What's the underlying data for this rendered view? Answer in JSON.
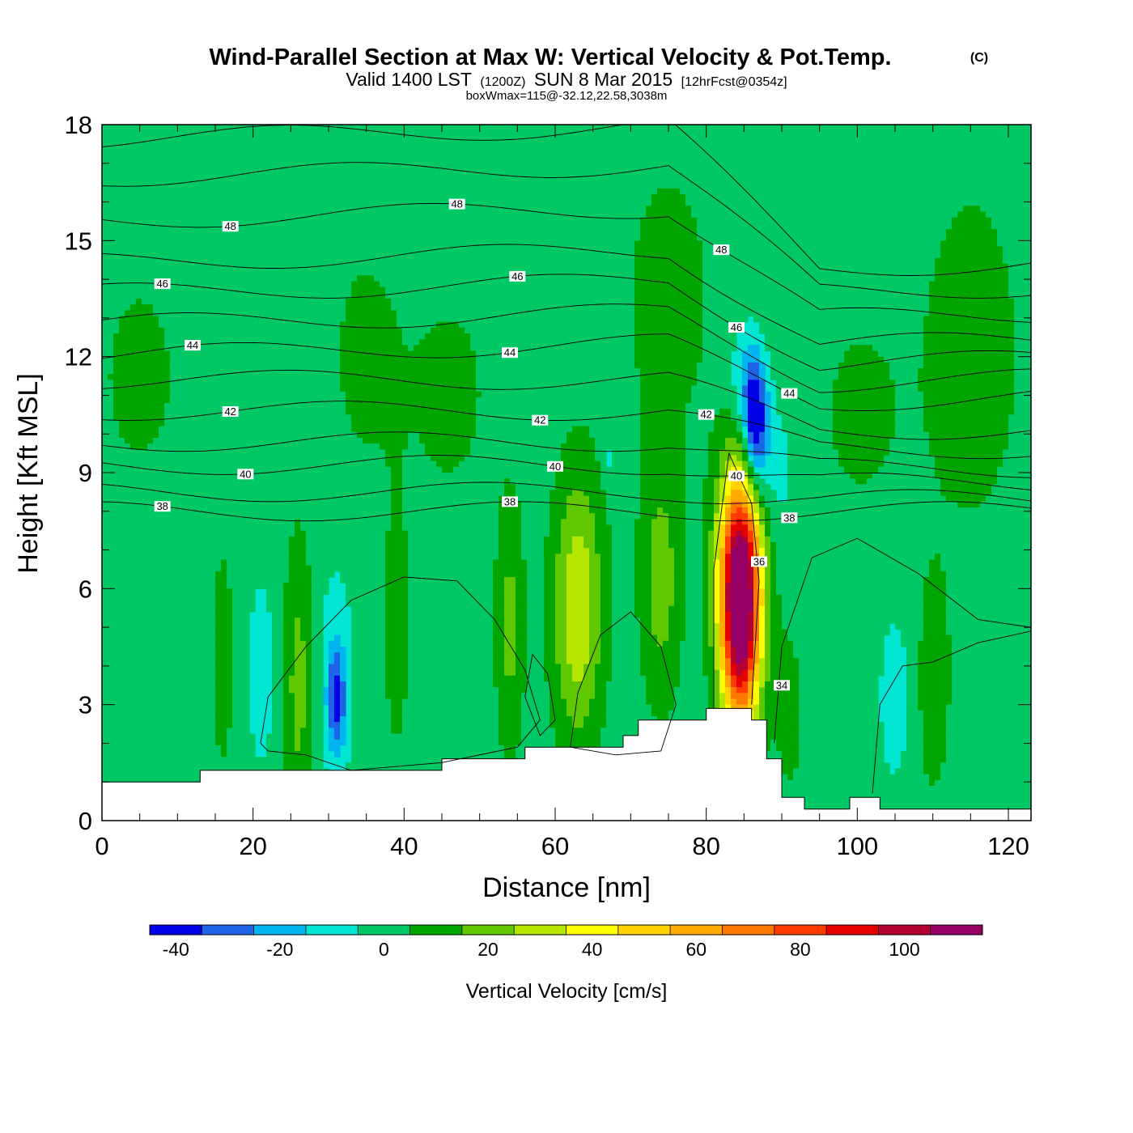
{
  "chart_data": {
    "type": "heatmap",
    "title": "Wind-Parallel Section at Max W: Vertical Velocity & Pot.Temp.",
    "title_suffix": "(C)",
    "subtitle": {
      "prefix": "Valid 1400 LST",
      "utc": "(1200Z)",
      "date": "SUN 8 Mar 2015",
      "forecast": "[12hrFcst@0354z]"
    },
    "subtitle2": "boxWmax=115@-32.12,22.58,3038m",
    "xlabel": "Distance [nm]",
    "ylabel": "Height [Kft MSL]",
    "xlim": [
      0,
      123
    ],
    "ylim": [
      0,
      18
    ],
    "x_ticks": [
      0,
      20,
      40,
      60,
      80,
      100,
      120
    ],
    "y_ticks": [
      0,
      3,
      6,
      9,
      12,
      15,
      18
    ],
    "colorbar": {
      "title": "Vertical Velocity [cm/s]",
      "bounds": [
        -45,
        -35,
        -25,
        -15,
        -5,
        5,
        15,
        25,
        35,
        45,
        55,
        65,
        75,
        85,
        95,
        105,
        115
      ],
      "colors": [
        "#0000e6",
        "#1e64e6",
        "#00b4f0",
        "#00e6d2",
        "#00c864",
        "#00a500",
        "#60c800",
        "#b4e600",
        "#ffff00",
        "#ffd200",
        "#ffaa00",
        "#ff7800",
        "#ff3c00",
        "#e60000",
        "#b40032",
        "#960064"
      ],
      "labels": [
        "-40",
        "-20",
        "0",
        "20",
        "40",
        "60",
        "80",
        "100"
      ],
      "label_values": [
        -40,
        -20,
        0,
        20,
        40,
        60,
        80,
        100
      ]
    },
    "features": [
      {
        "name": "strong-updraft",
        "x": 84.5,
        "y": 6.2,
        "sx": 2.0,
        "sy": 2.0,
        "w": 115
      },
      {
        "name": "updraft-lower",
        "x": 84.5,
        "y": 4.0,
        "sx": 1.7,
        "sy": 1.8,
        "w": 40
      },
      {
        "name": "updraft-63nm",
        "x": 63,
        "y": 5.5,
        "sx": 2.3,
        "sy": 2.4,
        "w": 34
      },
      {
        "name": "updraft-74nm",
        "x": 74,
        "y": 6.2,
        "sx": 1.9,
        "sy": 2.2,
        "w": 20
      },
      {
        "name": "updraft-54nm",
        "x": 54,
        "y": 5.0,
        "sx": 1.3,
        "sy": 2.3,
        "w": 18
      },
      {
        "name": "updraft-26nm",
        "x": 26,
        "y": 3.5,
        "sx": 1.3,
        "sy": 2.6,
        "w": 19
      },
      {
        "name": "updraft-39nm",
        "x": 39,
        "y": 5.0,
        "sx": 1.4,
        "sy": 2.6,
        "w": 9
      },
      {
        "name": "updraft-16nm",
        "x": 16,
        "y": 4.2,
        "sx": 1.3,
        "sy": 2.6,
        "w": 8
      },
      {
        "name": "updraft-110nm",
        "x": 110,
        "y": 3.3,
        "sx": 1.8,
        "sy": 2.2,
        "w": 9
      },
      {
        "name": "updraft-91nm",
        "x": 91,
        "y": 2.8,
        "sx": 1.5,
        "sy": 1.8,
        "w": 8
      },
      {
        "name": "downdraft-87nm",
        "x": 86.5,
        "y": 10.3,
        "sx": 1.1,
        "sy": 1.1,
        "w": -48
      },
      {
        "name": "downdraft-ridge",
        "x": 88.5,
        "y": 9.0,
        "sx": 2.3,
        "sy": 1.4,
        "w": -10
      },
      {
        "name": "downdraft-85nm-upper",
        "x": 85,
        "y": 11.5,
        "sx": 1.4,
        "sy": 1.0,
        "w": -15
      },
      {
        "name": "downdraft-31nm",
        "x": 31,
        "y": 3.1,
        "sx": 0.8,
        "sy": 0.9,
        "w": -32
      },
      {
        "name": "downdraft-31nm-wide",
        "x": 31,
        "y": 3.8,
        "sx": 1.7,
        "sy": 2.0,
        "w": -12
      },
      {
        "name": "downdraft-21nm",
        "x": 21,
        "y": 3.8,
        "sx": 1.3,
        "sy": 1.8,
        "w": -11
      },
      {
        "name": "downdraft-105nm",
        "x": 105,
        "y": 3.2,
        "sx": 1.6,
        "sy": 1.6,
        "w": -11
      },
      {
        "name": "downdraft-67nm",
        "x": 67,
        "y": 9.4,
        "sx": 0.6,
        "sy": 0.4,
        "w": -9
      },
      {
        "name": "updraft-upper-5nm",
        "x": 5,
        "y": 11.5,
        "sx": 4.0,
        "sy": 2.0,
        "w": 8
      },
      {
        "name": "updraft-upper-35nm",
        "x": 35,
        "y": 12.0,
        "sx": 3.5,
        "sy": 2.2,
        "w": 8
      },
      {
        "name": "updraft-upper-45nm",
        "x": 46,
        "y": 11.0,
        "sx": 4.0,
        "sy": 2.0,
        "w": 8
      },
      {
        "name": "updraft-upper-75nm",
        "x": 75,
        "y": 13.5,
        "sx": 5.0,
        "sy": 3.0,
        "w": 8
      },
      {
        "name": "updraft-upper-115nm",
        "x": 115,
        "y": 12.0,
        "sx": 6.0,
        "sy": 4.0,
        "w": 8
      },
      {
        "name": "updraft-upper-100nm",
        "x": 100,
        "y": 10.5,
        "sx": 4.0,
        "sy": 2.0,
        "w": 7
      }
    ],
    "terrain": [
      [
        0,
        1.0
      ],
      [
        13,
        1.0
      ],
      [
        13,
        1.3
      ],
      [
        45,
        1.3
      ],
      [
        45,
        1.6
      ],
      [
        56,
        1.6
      ],
      [
        56,
        1.9
      ],
      [
        69,
        1.9
      ],
      [
        69,
        2.2
      ],
      [
        71,
        2.2
      ],
      [
        71,
        2.6
      ],
      [
        80,
        2.6
      ],
      [
        80,
        2.9
      ],
      [
        86,
        2.9
      ],
      [
        86,
        2.6
      ],
      [
        88,
        2.6
      ],
      [
        88,
        1.6
      ],
      [
        90,
        1.6
      ],
      [
        90,
        0.6
      ],
      [
        93,
        0.6
      ],
      [
        93,
        0.3
      ],
      [
        99,
        0.3
      ],
      [
        99,
        0.6
      ],
      [
        103,
        0.6
      ],
      [
        103,
        0.3
      ],
      [
        123,
        0.3
      ]
    ],
    "isentropes": [
      {
        "value": 38,
        "base": 8.0,
        "label_x": [
          8,
          54,
          91
        ],
        "label_y_offset": [
          0,
          0,
          0.05
        ]
      },
      {
        "value": 39,
        "base": 8.5
      },
      {
        "value": 40,
        "base": 9.2,
        "label_x": [
          19,
          60,
          84
        ]
      },
      {
        "value": 41,
        "base": 9.8
      },
      {
        "value": 42,
        "base": 10.6,
        "label_x": [
          17,
          58,
          80
        ]
      },
      {
        "value": 43,
        "base": 11.4
      },
      {
        "value": 44,
        "base": 12.2,
        "label_x": [
          12,
          54,
          91
        ]
      },
      {
        "value": 45,
        "base": 13.0
      },
      {
        "value": 46,
        "base": 13.8,
        "label_x": [
          8,
          55,
          84
        ]
      },
      {
        "value": 47,
        "base": 14.6
      },
      {
        "value": 48,
        "base": 15.7,
        "label_x": [
          17,
          47,
          82
        ]
      },
      {
        "value": 49,
        "base": 16.8
      },
      {
        "value": 50,
        "base": 17.8
      }
    ],
    "lower_contour_labels": [
      {
        "value": 36,
        "x": 87,
        "y": 6.7
      },
      {
        "value": 34,
        "x": 90,
        "y": 3.5
      }
    ]
  }
}
